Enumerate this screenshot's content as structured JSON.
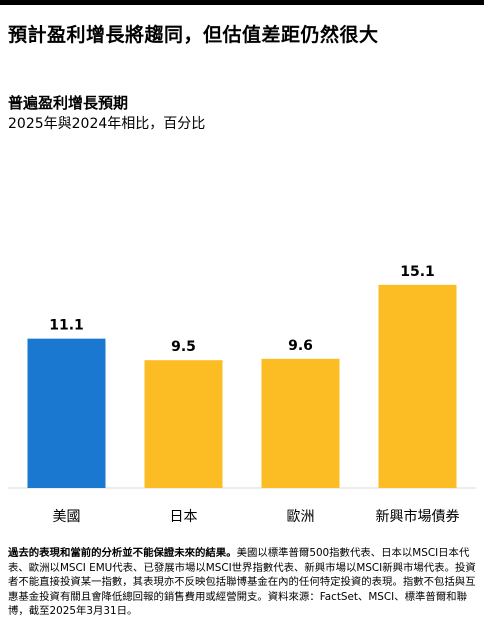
{
  "headline": "預計盈利增長將趨同，但估值差距仍然很大",
  "chart_data": {
    "type": "bar",
    "title": "普遍盈利增長預期",
    "subtitle": "2025年與2024年相比，百分比",
    "categories": [
      "美國",
      "日本",
      "歐洲",
      "新興市場債券"
    ],
    "values": [
      11.1,
      9.5,
      9.6,
      15.1
    ],
    "value_labels": [
      "11.1",
      "9.5",
      "9.6",
      "15.1"
    ],
    "colors": [
      "#1b78d1",
      "#fbbd23",
      "#fbbd23",
      "#fbbd23"
    ],
    "ylim": [
      0,
      16.5
    ],
    "grid": false,
    "legend": "none"
  },
  "footnote": {
    "bold": "過去的表現和當前的分析並不能保證未來的結果。",
    "text": "美國以標準普爾500指數代表、日本以MSCI日本代表、歐洲以MSCI EMU代表、已發展市場以MSCI世界指數代表、新興市場以MSCI新興市場代表。投資者不能直接投資某一指數，其表現亦不反映包括聯博基金在內的任何特定投資的表現。指數不包括與互惠基金投資有關且會降低總回報的銷售費用或經營開支。資料來源：FactSet、MSCI、標準普爾和聯博，截至2025年3月31日。"
  }
}
